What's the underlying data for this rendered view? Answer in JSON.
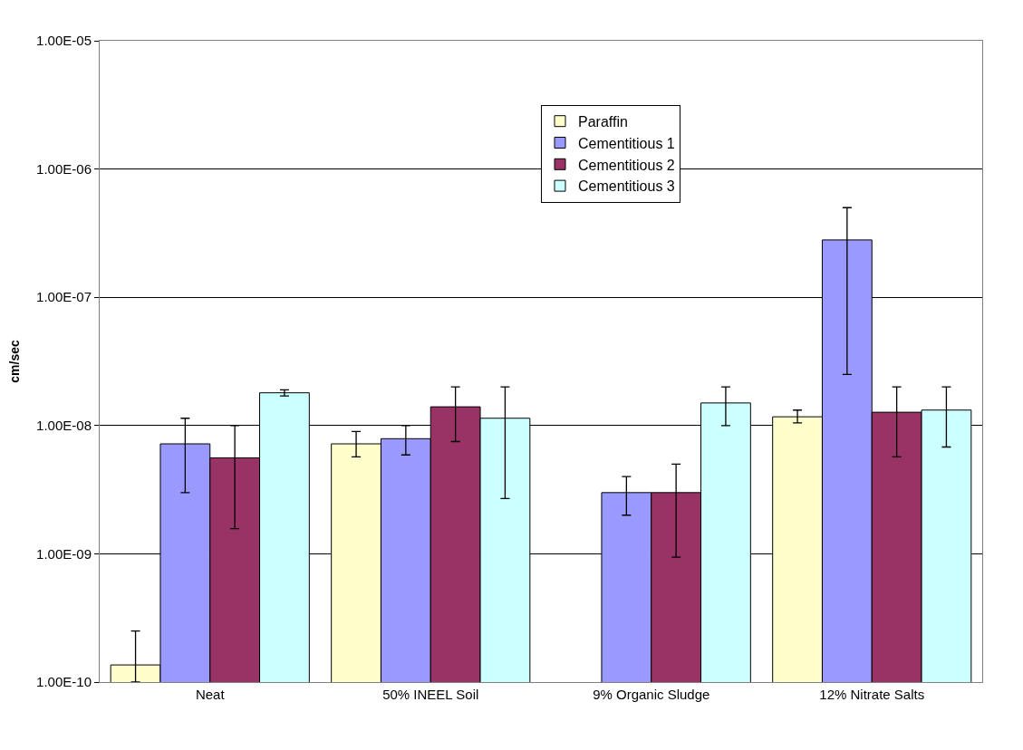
{
  "chart_data": {
    "type": "bar",
    "ylabel": "cm/sec",
    "categories": [
      "Neat",
      "50% INEEL Soil",
      "9% Organic Sludge",
      "12% Nitrate Salts"
    ],
    "series": [
      {
        "name": "Paraffin",
        "color": "#ffffcc",
        "values": [
          1.36e-10,
          7.2e-09,
          null,
          1.17e-08
        ],
        "errors": [
          [
            1e-10,
            2.5e-10
          ],
          [
            5.7e-09,
            9e-09
          ],
          null,
          [
            1.05e-08,
            1.32e-08
          ]
        ]
      },
      {
        "name": "Cementitious 1",
        "color": "#9999ff",
        "values": [
          7.2e-09,
          7.9e-09,
          3e-09,
          2.8e-07
        ],
        "errors": [
          [
            3e-09,
            1.14e-08
          ],
          [
            5.9e-09,
            1e-08
          ],
          [
            2e-09,
            4e-09
          ],
          [
            2.5e-08,
            5e-07
          ]
        ]
      },
      {
        "name": "Cementitious 2",
        "color": "#993366",
        "values": [
          5.6e-09,
          1.4e-08,
          3e-09,
          1.27e-08
        ],
        "errors": [
          [
            1.57e-09,
            1e-08
          ],
          [
            7.5e-09,
            2e-08
          ],
          [
            9.4e-10,
            5e-09
          ],
          [
            5.7e-09,
            2e-08
          ]
        ]
      },
      {
        "name": "Cementitious 3",
        "color": "#ccffff",
        "values": [
          1.8e-08,
          1.14e-08,
          1.5e-08,
          1.32e-08
        ],
        "errors": [
          [
            1.7e-08,
            1.9e-08
          ],
          [
            2.7e-09,
            2e-08
          ],
          [
            1e-08,
            2e-08
          ],
          [
            6.8e-09,
            2e-08
          ]
        ]
      }
    ],
    "ylim": [
      1e-10,
      1e-05
    ],
    "yticks": [
      {
        "value": 1e-10,
        "label": "1.00E-10"
      },
      {
        "value": 1e-09,
        "label": "1.00E-09"
      },
      {
        "value": 1e-08,
        "label": "1.00E-08"
      },
      {
        "value": 1e-07,
        "label": "1.00E-07"
      },
      {
        "value": 1e-06,
        "label": "1.00E-06"
      },
      {
        "value": 1e-05,
        "label": "1.00E-05"
      }
    ],
    "log": true,
    "grid": "y",
    "legend": "top"
  }
}
